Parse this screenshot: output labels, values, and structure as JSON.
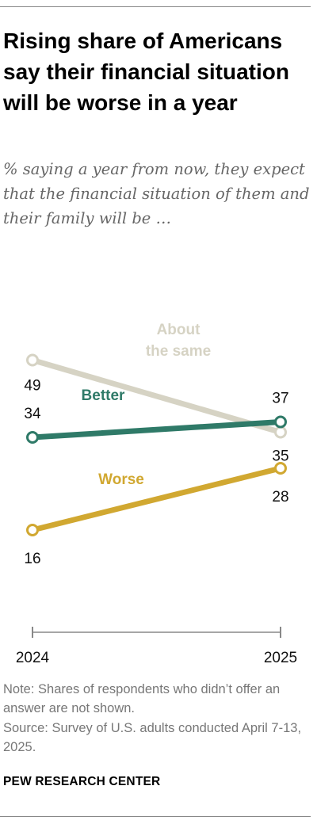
{
  "title": "Rising share of Americans say their financial situation will be worse in a year",
  "subtitle": "% saying a year from now, they expect that the financial situation of them and their family will be …",
  "note": "Note: Shares of respondents who didn’t offer an answer are not shown.",
  "source": "Source: Survey of U.S. adults conducted April 7-13, 2025.",
  "credit": "PEW RESEARCH CENTER",
  "chart_data": {
    "type": "line",
    "x": [
      "2024",
      "2025"
    ],
    "series": [
      {
        "name": "About the same",
        "label_lines": [
          "About",
          "the same"
        ],
        "values": [
          49,
          35
        ],
        "color": "#d6d3c4"
      },
      {
        "name": "Better",
        "label_lines": [
          "Better"
        ],
        "values": [
          34,
          37
        ],
        "color": "#2f7a68"
      },
      {
        "name": "Worse",
        "label_lines": [
          "Worse"
        ],
        "values": [
          16,
          28
        ],
        "color": "#d1a831"
      }
    ],
    "grid": false,
    "legend": "inline labels"
  }
}
